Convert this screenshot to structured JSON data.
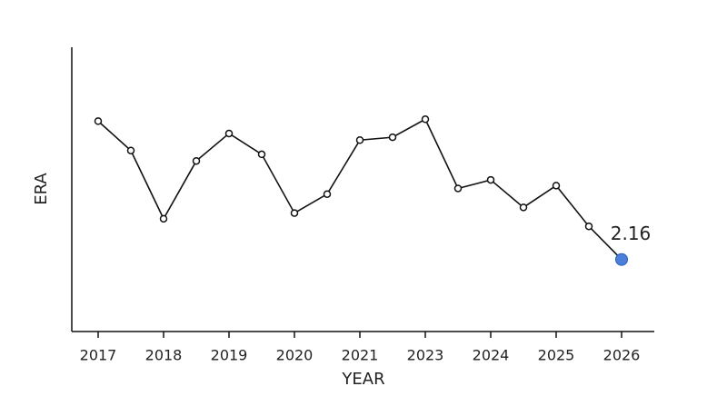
{
  "chart_data": {
    "type": "line",
    "x_label": "YEAR",
    "y_label": "ERA",
    "categories": [
      "2017",
      null,
      "2018",
      null,
      "2019",
      null,
      "2020",
      null,
      "2021",
      null,
      "2023",
      null,
      "2024",
      null,
      "2025",
      null,
      "2026"
    ],
    "series": [
      {
        "name": "ERA",
        "color": "#111111",
        "values": [
          3.62,
          3.31,
          2.59,
          3.2,
          3.49,
          3.27,
          2.65,
          2.85,
          3.42,
          3.45,
          3.64,
          2.91,
          3.0,
          2.71,
          2.94,
          2.51,
          2.16
        ]
      }
    ],
    "highlight_color": "#4a80dc",
    "ylim": [
      1.4,
      4.4
    ]
  }
}
